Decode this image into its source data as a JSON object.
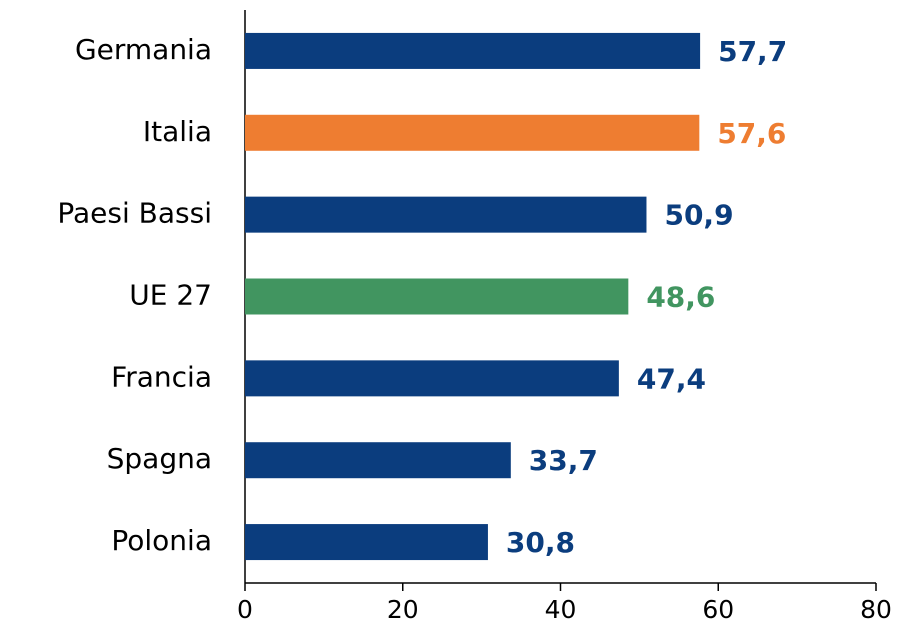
{
  "chart_data": {
    "type": "hbar",
    "categories": [
      "Germania",
      "Italia",
      "Paesi Bassi",
      "UE 27",
      "Francia",
      "Spagna",
      "Polonia"
    ],
    "values": [
      57.7,
      57.6,
      50.9,
      48.6,
      47.4,
      33.7,
      30.8
    ],
    "value_labels": [
      "57,7",
      "57,6",
      "50,9",
      "48,6",
      "47,4",
      "33,7",
      "30,8"
    ],
    "colors": [
      "#0b3d7e",
      "#ee7d31",
      "#0b3d7e",
      "#419560",
      "#0b3d7e",
      "#0b3d7e",
      "#0b3d7e"
    ],
    "xlim": [
      0,
      80
    ],
    "xticks": [
      0,
      20,
      40,
      60,
      80
    ]
  }
}
